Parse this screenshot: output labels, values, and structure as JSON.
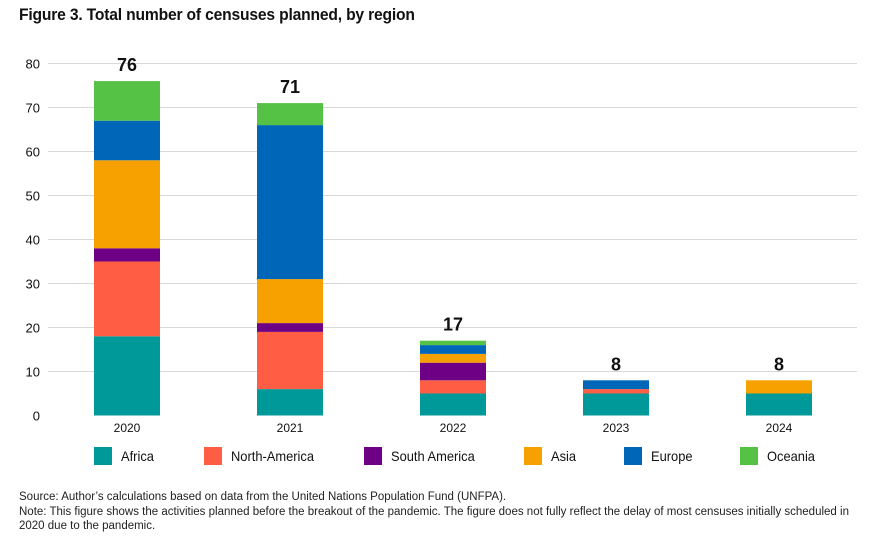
{
  "title": "Figure 3. Total number of censuses planned, by region",
  "chart_data": {
    "type": "bar",
    "stacked": true,
    "categories": [
      "2020",
      "2021",
      "2022",
      "2023",
      "2024"
    ],
    "totals": [
      "76",
      "71",
      "17",
      "8",
      "8"
    ],
    "ylim": [
      0,
      80
    ],
    "yticks": [
      "0",
      "10",
      "20",
      "30",
      "40",
      "50",
      "60",
      "70",
      "80"
    ],
    "grid": true,
    "legend_position": "bottom",
    "series": [
      {
        "name": "Africa",
        "color": "#009999",
        "values": [
          18,
          6,
          5,
          5,
          5
        ]
      },
      {
        "name": "North-America",
        "color": "#FF5E45",
        "values": [
          17,
          13,
          3,
          1,
          0
        ]
      },
      {
        "name": "South America",
        "color": "#6E0085",
        "values": [
          3,
          2,
          4,
          0,
          0
        ]
      },
      {
        "name": "Asia",
        "color": "#F7A100",
        "values": [
          20,
          10,
          2,
          0,
          3
        ]
      },
      {
        "name": "Europe",
        "color": "#0067B8",
        "values": [
          9,
          35,
          2,
          2,
          0
        ]
      },
      {
        "name": "Oceania",
        "color": "#55C145",
        "values": [
          9,
          5,
          1,
          0,
          0
        ]
      }
    ]
  },
  "source": "Source: Author’s calculations based on data from the United Nations Population Fund (UNFPA).",
  "note": "Note: This figure shows the activities planned before the breakout of the pandemic. The figure does not fully reflect the delay of most censuses initially scheduled in 2020 due to the pandemic."
}
